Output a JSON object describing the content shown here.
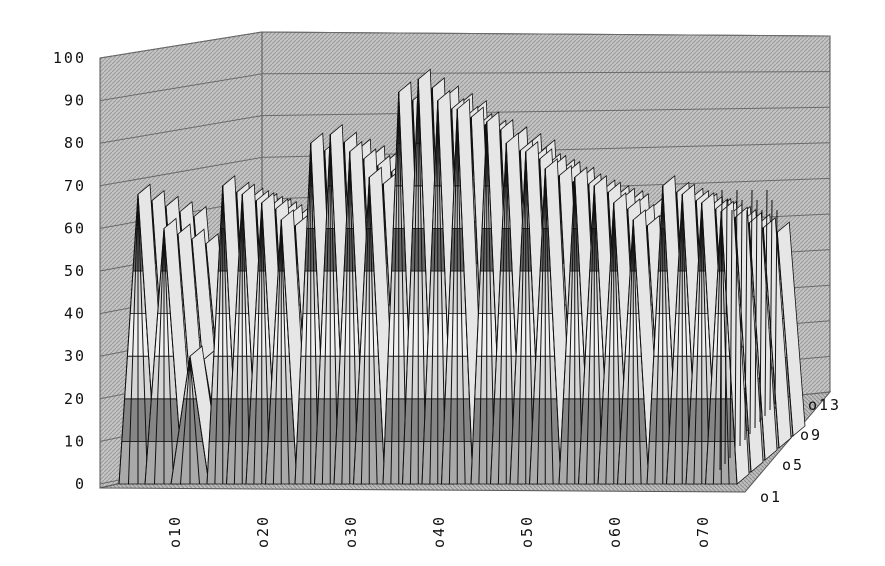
{
  "chart_data": {
    "type": "surface",
    "title": "",
    "xlabel": "",
    "ylabel": "",
    "zlabel": "",
    "z_ticks": [
      "0",
      "10",
      "20",
      "30",
      "40",
      "50",
      "60",
      "70",
      "80",
      "90",
      "100"
    ],
    "zlim": [
      0,
      100
    ],
    "x_ticks": [
      "o10",
      "o20",
      "o30",
      "o40",
      "o50",
      "o60",
      "o70"
    ],
    "y_ticks": [
      "o1",
      "o5",
      "o9",
      "o13"
    ],
    "grid": true,
    "color_bands": [
      {
        "range": [
          0,
          10
        ],
        "color": "#a9a9a9"
      },
      {
        "range": [
          10,
          20
        ],
        "color": "#868686"
      },
      {
        "range": [
          20,
          30
        ],
        "color": "#d6d6d6"
      },
      {
        "range": [
          30,
          40
        ],
        "color": "#f0f0f0"
      },
      {
        "range": [
          40,
          50
        ],
        "color": "#d6d6d6"
      },
      {
        "range": [
          50,
          60
        ],
        "color": "#686868"
      },
      {
        "range": [
          60,
          70
        ],
        "color": "#cfcfcf"
      },
      {
        "range": [
          70,
          80
        ],
        "color": "#a9a9a9"
      },
      {
        "range": [
          80,
          90
        ],
        "color": "#8e8e8e"
      },
      {
        "range": [
          90,
          100
        ],
        "color": "#333333"
      }
    ],
    "peak_rows": [
      {
        "peaks": [
          68,
          60,
          30
        ],
        "valleys": [
          0,
          0
        ]
      },
      {
        "peaks": [
          70,
          68,
          66,
          62
        ],
        "valleys": [
          0,
          0,
          0
        ]
      },
      {
        "peaks": [
          80,
          82,
          78,
          72
        ],
        "valleys": [
          0,
          0,
          0
        ]
      },
      {
        "peaks": [
          92,
          95,
          90,
          88
        ],
        "valleys": [
          0,
          0,
          0
        ]
      },
      {
        "peaks": [
          85,
          80,
          78,
          74
        ],
        "valleys": [
          0,
          0,
          0
        ]
      },
      {
        "peaks": [
          72,
          70,
          66,
          62
        ],
        "valleys": [
          0,
          0,
          0
        ]
      },
      {
        "peaks": [
          70,
          68,
          66,
          64
        ],
        "valleys": [
          0,
          0,
          0
        ]
      }
    ]
  }
}
